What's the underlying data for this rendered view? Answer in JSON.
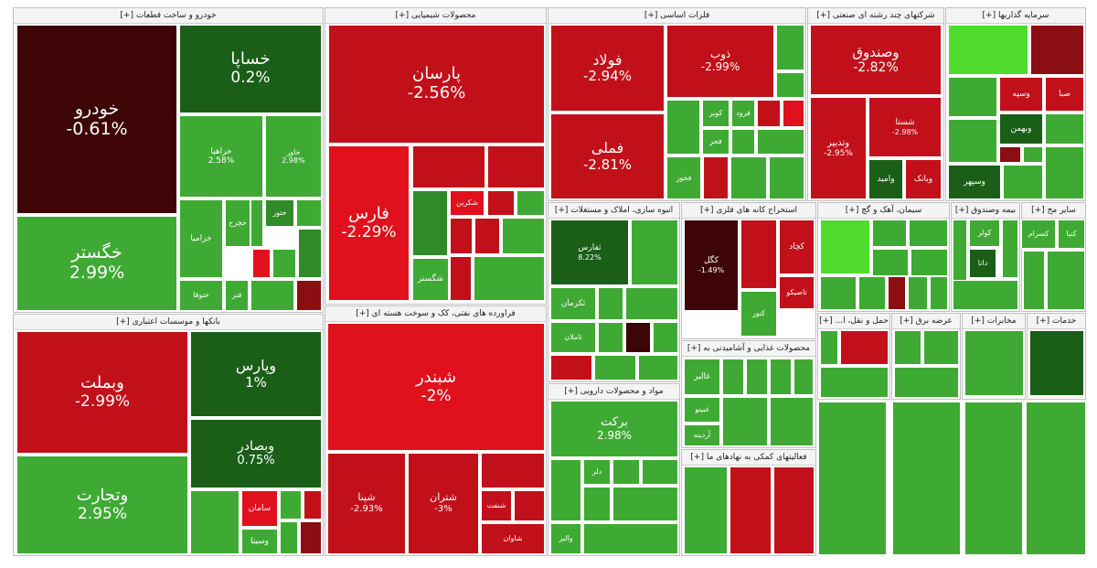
{
  "colors": {
    "deep_red": "#3d0505",
    "red": "#c2101a",
    "bright_red": "#e0111c",
    "dark_red": "#8a0e12",
    "green": "#3faa33",
    "bright_green": "#4fdc2c",
    "dark_green": "#1a5e18",
    "mid_green": "#2f8a27",
    "light_green": "#62d44a"
  },
  "chart_data": {
    "type": "treemap",
    "sectors": [
      {
        "id": "auto",
        "label": "خودرو و ساخت قطعات [+]",
        "tiles": [
          {
            "id": "khodro",
            "name": "خودرو",
            "pct": "-0.61%",
            "value": -0.61
          },
          {
            "id": "khesapa",
            "name": "خساپا",
            "pct": "0.2%",
            "value": 0.2
          },
          {
            "id": "khgostar",
            "name": "خگستر",
            "pct": "2.99%",
            "value": 2.99
          },
          {
            "id": "kheramia",
            "name": "خراهیا",
            "pct": "2.58%",
            "value": 2.58
          },
          {
            "id": "khazar",
            "name": "خاور",
            "pct": "2.98%",
            "value": 2.98
          },
          {
            "id": "khzamya",
            "name": "خزامیا",
            "pct": "",
            "value": null
          },
          {
            "id": "khchrkh",
            "name": "خچرخ",
            "pct": "",
            "value": null
          },
          {
            "id": "kherina",
            "name": "خرینا",
            "pct": "",
            "value": null
          },
          {
            "id": "khtoor",
            "name": "ختور",
            "pct": "",
            "value": null
          },
          {
            "id": "khtoogha",
            "name": "ختوقا",
            "pct": "",
            "value": null
          },
          {
            "id": "fanar",
            "name": "فنر",
            "pct": "",
            "value": null
          }
        ]
      },
      {
        "id": "chem",
        "label": "محصولات شیمیایی [+]",
        "tiles": [
          {
            "id": "parsan",
            "name": "پارسان",
            "pct": "-2.56%",
            "value": -2.56
          },
          {
            "id": "fars",
            "name": "فارس",
            "pct": "-2.29%",
            "value": -2.29
          },
          {
            "id": "shekarbon",
            "name": "شکربن",
            "pct": "",
            "value": null
          },
          {
            "id": "shegostar",
            "name": "شگستر",
            "pct": "",
            "value": null
          }
        ]
      },
      {
        "id": "metals",
        "label": "فلزات اساسی [+]",
        "tiles": [
          {
            "id": "foolad",
            "name": "فولاد",
            "pct": "-2.94%",
            "value": -2.94
          },
          {
            "id": "fameli",
            "name": "فملی",
            "pct": "-2.81%",
            "value": -2.81
          },
          {
            "id": "zob",
            "name": "ذوب",
            "pct": "-2.99%",
            "value": -2.99
          },
          {
            "id": "kavir",
            "name": "کویر",
            "pct": "",
            "value": null
          },
          {
            "id": "forood",
            "name": "فرود",
            "pct": "",
            "value": null
          },
          {
            "id": "fajr",
            "name": "فجر",
            "pct": "",
            "value": null
          },
          {
            "id": "fekhooz",
            "name": "فخوز",
            "pct": "",
            "value": null
          }
        ]
      },
      {
        "id": "holding",
        "label": "شرکتهای چند رشته ای صنعتی [+]",
        "tiles": [
          {
            "id": "vasandoogh",
            "name": "وصندوق",
            "pct": "-2.82%",
            "value": -2.82
          },
          {
            "id": "shasta",
            "name": "شستا",
            "pct": "-2.98%",
            "value": -2.98
          },
          {
            "id": "vatadbir",
            "name": "وتدبیر",
            "pct": "-2.95%",
            "value": -2.95
          },
          {
            "id": "vamaid",
            "name": "وامید",
            "pct": "",
            "value": null
          },
          {
            "id": "vabank",
            "name": "وبانک",
            "pct": "",
            "value": null
          }
        ]
      },
      {
        "id": "invest",
        "label": "سرمایه گذاریها [+]",
        "tiles": [
          {
            "id": "vasapa",
            "name": "وسپه",
            "pct": "",
            "value": null
          },
          {
            "id": "vabahman",
            "name": "وبهمن",
            "pct": "",
            "value": null
          },
          {
            "id": "vasehor",
            "name": "وسپهر",
            "pct": "",
            "value": null
          },
          {
            "id": "saba",
            "name": "صبا",
            "pct": "",
            "value": null
          }
        ]
      },
      {
        "id": "banks",
        "label": "بانکها و موسسات اعتباری [+]",
        "tiles": [
          {
            "id": "vabmelat",
            "name": "وبملت",
            "pct": "-2.99%",
            "value": -2.99
          },
          {
            "id": "vatejarat",
            "name": "وتجارت",
            "pct": "2.95%",
            "value": 2.95
          },
          {
            "id": "vaparsi",
            "name": "وپارس",
            "pct": "1%",
            "value": 1
          },
          {
            "id": "vabsader",
            "name": "وبصادر",
            "pct": "0.75%",
            "value": 0.75
          },
          {
            "id": "saman",
            "name": "سامان",
            "pct": "",
            "value": null
          },
          {
            "id": "vasina",
            "name": "وسینا",
            "pct": "",
            "value": null
          }
        ]
      },
      {
        "id": "refining",
        "label": "فراورده های نفتی، کک و سوخت هسته ای [+]",
        "tiles": [
          {
            "id": "shabandar",
            "name": "شبندر",
            "pct": "-2%",
            "value": -2
          },
          {
            "id": "shepna",
            "name": "شپنا",
            "pct": "-2.93%",
            "value": -2.93
          },
          {
            "id": "shetran",
            "name": "شتران",
            "pct": "-3%",
            "value": -3
          },
          {
            "id": "shenaft",
            "name": "شنفت",
            "pct": "",
            "value": null
          },
          {
            "id": "shavan",
            "name": "شاوان",
            "pct": "",
            "value": null
          }
        ]
      },
      {
        "id": "realestate",
        "label": "انبوه سازی، املاک و مستغلات [+]",
        "tiles": [
          {
            "id": "thafars",
            "name": "ثفارس",
            "pct": "8.22%",
            "value": 8.22
          },
          {
            "id": "thakarman",
            "name": "ثکرمان",
            "pct": "",
            "value": null
          },
          {
            "id": "thamlan",
            "name": "ثاملان",
            "pct": "",
            "value": null
          }
        ]
      },
      {
        "id": "mining",
        "label": "استخراج کانه های فلزی [+]",
        "tiles": [
          {
            "id": "kegol",
            "name": "کگل",
            "pct": "-1.49%",
            "value": -1.49
          },
          {
            "id": "kechad",
            "name": "کچاد",
            "pct": "",
            "value": null
          },
          {
            "id": "tapico",
            "name": "تاصیکو",
            "pct": "",
            "value": null
          },
          {
            "id": "koor",
            "name": "کنور",
            "pct": "",
            "value": null
          }
        ]
      },
      {
        "id": "cement",
        "label": "سیمان، آهک و گچ [+]",
        "tiles": []
      },
      {
        "id": "food",
        "label": "محصولات غذایی و آشامیدنی به [+]",
        "tiles": [
          {
            "id": "ghaler",
            "name": "غالبر",
            "pct": "",
            "value": null
          },
          {
            "id": "ghabino",
            "name": "غبینو",
            "pct": "",
            "value": null
          },
          {
            "id": "ardine",
            "name": "آردینه",
            "pct": "",
            "value": null
          }
        ]
      },
      {
        "id": "pharma",
        "label": "مواد و محصولات دارویی [+]",
        "tiles": [
          {
            "id": "barakat",
            "name": "برکت",
            "pct": "2.98%",
            "value": 2.98
          },
          {
            "id": "delor",
            "name": "دلر",
            "pct": "",
            "value": null
          },
          {
            "id": "dalber",
            "name": "والبر",
            "pct": "",
            "value": null
          }
        ]
      },
      {
        "id": "aux",
        "label": "فعالیتهای کمکی به نهادهای ما [+]",
        "tiles": []
      },
      {
        "id": "transport",
        "label": "حمل و نقل، ا... [+]",
        "tiles": []
      },
      {
        "id": "electric",
        "label": "عرضه برق [+]",
        "tiles": []
      },
      {
        "id": "misc1",
        "label": "مخابرات [+]",
        "tiles": []
      },
      {
        "id": "misc2",
        "label": "خدمات [+]",
        "tiles": []
      },
      {
        "id": "insurance",
        "label": "بیمه وصندوق [+]",
        "tiles": [
          {
            "id": "koolr",
            "name": "کولر",
            "pct": "",
            "value": null
          },
          {
            "id": "dana",
            "name": "دانا",
            "pct": "",
            "value": null
          }
        ]
      },
      {
        "id": "agri",
        "label": "سایر مح [+]",
        "tiles": [
          {
            "id": "kesram",
            "name": "کسرام",
            "pct": "",
            "value": null
          },
          {
            "id": "kenia",
            "name": "کنیا",
            "pct": "",
            "value": null
          }
        ]
      }
    ]
  }
}
